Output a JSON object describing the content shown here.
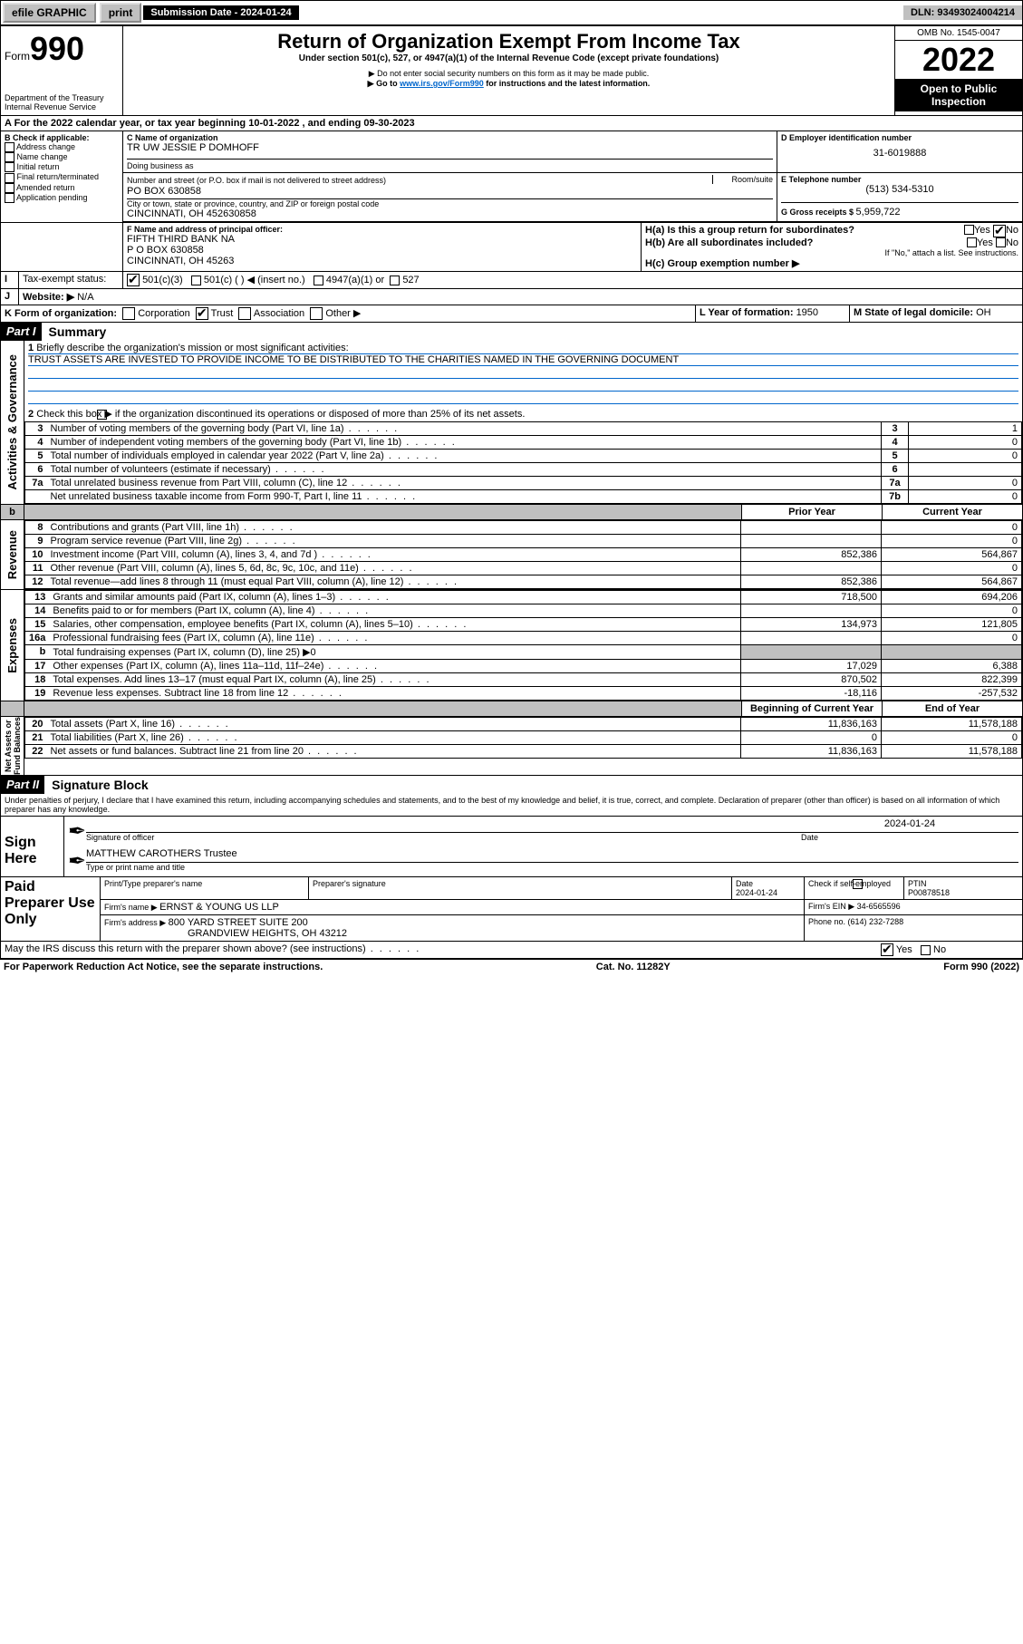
{
  "topbar": {
    "efile": "efile GRAPHIC",
    "print": "print",
    "sub_label": "Submission Date - 2024-01-24",
    "dln": "DLN: 93493024004214"
  },
  "header": {
    "form_word": "Form",
    "form_no": "990",
    "title": "Return of Organization Exempt From Income Tax",
    "sub1": "Under section 501(c), 527, or 4947(a)(1) of the Internal Revenue Code (except private foundations)",
    "sub2": "▶ Do not enter social security numbers on this form as it may be made public.",
    "sub3": "▶ Go to ",
    "sub3_link": "www.irs.gov/Form990",
    "sub3_tail": " for instructions and the latest information.",
    "dept": "Department of the Treasury",
    "irs": "Internal Revenue Service",
    "omb": "OMB No. 1545-0047",
    "year": "2022",
    "inspect": "Open to Public Inspection"
  },
  "lineA": {
    "text_a": "A For the 2022 calendar year, or tax year beginning ",
    "begin": "10-01-2022",
    "mid": " , and ending ",
    "end": "09-30-2023"
  },
  "boxB": {
    "label": "B Check if applicable:",
    "opts": [
      "Address change",
      "Name change",
      "Initial return",
      "Final return/terminated",
      "Amended return",
      "Application pending"
    ]
  },
  "boxC": {
    "label": "C Name of organization",
    "name": "TR UW JESSIE P DOMHOFF",
    "dba_label": "Doing business as",
    "addr_label": "Number and street (or P.O. box if mail is not delivered to street address)",
    "room_label": "Room/suite",
    "addr": "PO BOX 630858",
    "city_label": "City or town, state or province, country, and ZIP or foreign postal code",
    "city": "CINCINNATI, OH  452630858"
  },
  "boxD": {
    "label": "D Employer identification number",
    "val": "31-6019888"
  },
  "boxE": {
    "label": "E Telephone number",
    "val": "(513) 534-5310"
  },
  "boxG": {
    "label": "G Gross receipts $ ",
    "val": "5,959,722"
  },
  "boxF": {
    "label": "F Name and address of principal officer:",
    "l1": "FIFTH THIRD BANK NA",
    "l2": "P O BOX 630858",
    "l3": "CINCINNATI, OH  45263"
  },
  "boxH": {
    "a": "H(a)  Is this a group return for subordinates?",
    "b": "H(b)  Are all subordinates included?",
    "b2": "If \"No,\" attach a list. See instructions.",
    "c": "H(c)  Group exemption number ▶"
  },
  "lineI": {
    "label": "Tax-exempt status:",
    "o1": "501(c)(3)",
    "o2": "501(c) (   ) ◀ (insert no.)",
    "o3": "4947(a)(1) or",
    "o4": "527"
  },
  "lineJ": {
    "label": "Website: ▶",
    "val": "N/A"
  },
  "lineK": {
    "label": "K Form of organization:",
    "opts": [
      "Corporation",
      "Trust",
      "Association",
      "Other ▶"
    ],
    "checked": 1
  },
  "lineL": {
    "label": "L Year of formation: ",
    "val": "1950"
  },
  "lineM": {
    "label": "M State of legal domicile: ",
    "val": "OH"
  },
  "parts": {
    "p1": "Part I",
    "p1_title": "Summary",
    "p2": "Part II",
    "p2_title": "Signature Block"
  },
  "summary": {
    "q1": "Briefly describe the organization's mission or most significant activities:",
    "mission": "TRUST ASSETS ARE INVESTED TO PROVIDE INCOME TO BE DISTRIBUTED TO THE CHARITIES NAMED IN THE GOVERNING DOCUMENT",
    "q2": "Check this box ▶         if the organization discontinued its operations or disposed of more than 25% of its net assets.",
    "gov_lines": [
      {
        "n": "3",
        "t": "Number of voting members of the governing body (Part VI, line 1a)",
        "k": "3",
        "v": "1"
      },
      {
        "n": "4",
        "t": "Number of independent voting members of the governing body (Part VI, line 1b)",
        "k": "4",
        "v": "0"
      },
      {
        "n": "5",
        "t": "Total number of individuals employed in calendar year 2022 (Part V, line 2a)",
        "k": "5",
        "v": "0"
      },
      {
        "n": "6",
        "t": "Total number of volunteers (estimate if necessary)",
        "k": "6",
        "v": ""
      },
      {
        "n": "7a",
        "t": "Total unrelated business revenue from Part VIII, column (C), line 12",
        "k": "7a",
        "v": "0"
      },
      {
        "n": "",
        "t": "Net unrelated business taxable income from Form 990-T, Part I, line 11",
        "k": "7b",
        "v": "0"
      }
    ],
    "col_prior": "Prior Year",
    "col_curr": "Current Year",
    "rev": [
      {
        "n": "8",
        "t": "Contributions and grants (Part VIII, line 1h)",
        "p": "",
        "c": "0"
      },
      {
        "n": "9",
        "t": "Program service revenue (Part VIII, line 2g)",
        "p": "",
        "c": "0"
      },
      {
        "n": "10",
        "t": "Investment income (Part VIII, column (A), lines 3, 4, and 7d )",
        "p": "852,386",
        "c": "564,867"
      },
      {
        "n": "11",
        "t": "Other revenue (Part VIII, column (A), lines 5, 6d, 8c, 9c, 10c, and 11e)",
        "p": "",
        "c": "0"
      },
      {
        "n": "12",
        "t": "Total revenue—add lines 8 through 11 (must equal Part VIII, column (A), line 12)",
        "p": "852,386",
        "c": "564,867"
      }
    ],
    "exp": [
      {
        "n": "13",
        "t": "Grants and similar amounts paid (Part IX, column (A), lines 1–3)",
        "p": "718,500",
        "c": "694,206"
      },
      {
        "n": "14",
        "t": "Benefits paid to or for members (Part IX, column (A), line 4)",
        "p": "",
        "c": "0"
      },
      {
        "n": "15",
        "t": "Salaries, other compensation, employee benefits (Part IX, column (A), lines 5–10)",
        "p": "134,973",
        "c": "121,805"
      },
      {
        "n": "16a",
        "t": "Professional fundraising fees (Part IX, column (A), line 11e)",
        "p": "",
        "c": "0"
      },
      {
        "n": "b",
        "t": "Total fundraising expenses (Part IX, column (D), line 25) ▶0",
        "p": "—shade—",
        "c": "—shade—"
      },
      {
        "n": "17",
        "t": "Other expenses (Part IX, column (A), lines 11a–11d, 11f–24e)",
        "p": "17,029",
        "c": "6,388"
      },
      {
        "n": "18",
        "t": "Total expenses. Add lines 13–17 (must equal Part IX, column (A), line 25)",
        "p": "870,502",
        "c": "822,399"
      },
      {
        "n": "19",
        "t": "Revenue less expenses. Subtract line 18 from line 12",
        "p": "-18,116",
        "c": "-257,532"
      }
    ],
    "col_begin": "Beginning of Current Year",
    "col_end": "End of Year",
    "net": [
      {
        "n": "20",
        "t": "Total assets (Part X, line 16)",
        "p": "11,836,163",
        "c": "11,578,188"
      },
      {
        "n": "21",
        "t": "Total liabilities (Part X, line 26)",
        "p": "0",
        "c": "0"
      },
      {
        "n": "22",
        "t": "Net assets or fund balances. Subtract line 21 from line 20",
        "p": "11,836,163",
        "c": "11,578,188"
      }
    ],
    "side": {
      "act": "Activities & Governance",
      "rev": "Revenue",
      "exp": "Expenses",
      "net": "Net Assets or\nFund Balances"
    }
  },
  "sig": {
    "penalty": "Under penalties of perjury, I declare that I have examined this return, including accompanying schedules and statements, and to the best of my knowledge and belief, it is true, correct, and complete. Declaration of preparer (other than officer) is based on all information of which preparer has any knowledge.",
    "sign_here": "Sign Here",
    "sig_officer": "Signature of officer",
    "date_label": "Date",
    "sig_date": "2024-01-24",
    "name_title": "MATTHEW CAROTHERS  Trustee",
    "name_label": "Type or print name and title",
    "paid": "Paid Preparer Use Only",
    "col_print": "Print/Type preparer's name",
    "col_sig": "Preparer's signature",
    "col_date": "Date",
    "prep_date": "2024-01-24",
    "check_self": "Check         if self-employed",
    "ptin_label": "PTIN",
    "ptin": "P00878518",
    "firm_name_l": "Firm's name     ▶ ",
    "firm_name": "ERNST & YOUNG US LLP",
    "firm_ein_l": "Firm's EIN ▶ ",
    "firm_ein": "34-6565596",
    "firm_addr_l": "Firm's address ▶ ",
    "firm_addr1": "800 YARD STREET SUITE 200",
    "firm_addr2": "GRANDVIEW HEIGHTS, OH  43212",
    "phone_l": "Phone no. ",
    "phone": "(614) 232-7288",
    "discuss": "May the IRS discuss this return with the preparer shown above? (see instructions)"
  },
  "footer": {
    "left": "For Paperwork Reduction Act Notice, see the separate instructions.",
    "mid": "Cat. No. 11282Y",
    "right": "Form 990 (2022)"
  },
  "yn": {
    "yes": "Yes",
    "no": "No"
  }
}
